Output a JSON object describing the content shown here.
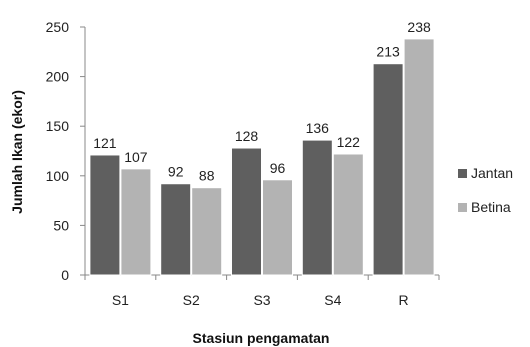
{
  "chart_data": {
    "type": "bar",
    "categories": [
      "S1",
      "S2",
      "S3",
      "S4",
      "R"
    ],
    "series": [
      {
        "name": "Jantan",
        "values": [
          121,
          92,
          128,
          136,
          213
        ],
        "color": "#5f5f5f"
      },
      {
        "name": "Betina",
        "values": [
          107,
          88,
          96,
          122,
          238
        ],
        "color": "#b3b3b3"
      }
    ],
    "xlabel": "Stasiun pengamatan",
    "ylabel": "Jumlah Ikan (ekor)",
    "ylim": [
      0,
      250
    ],
    "yticks": [
      0,
      50,
      100,
      150,
      200,
      250
    ],
    "grid": false,
    "legend_position": "right"
  }
}
